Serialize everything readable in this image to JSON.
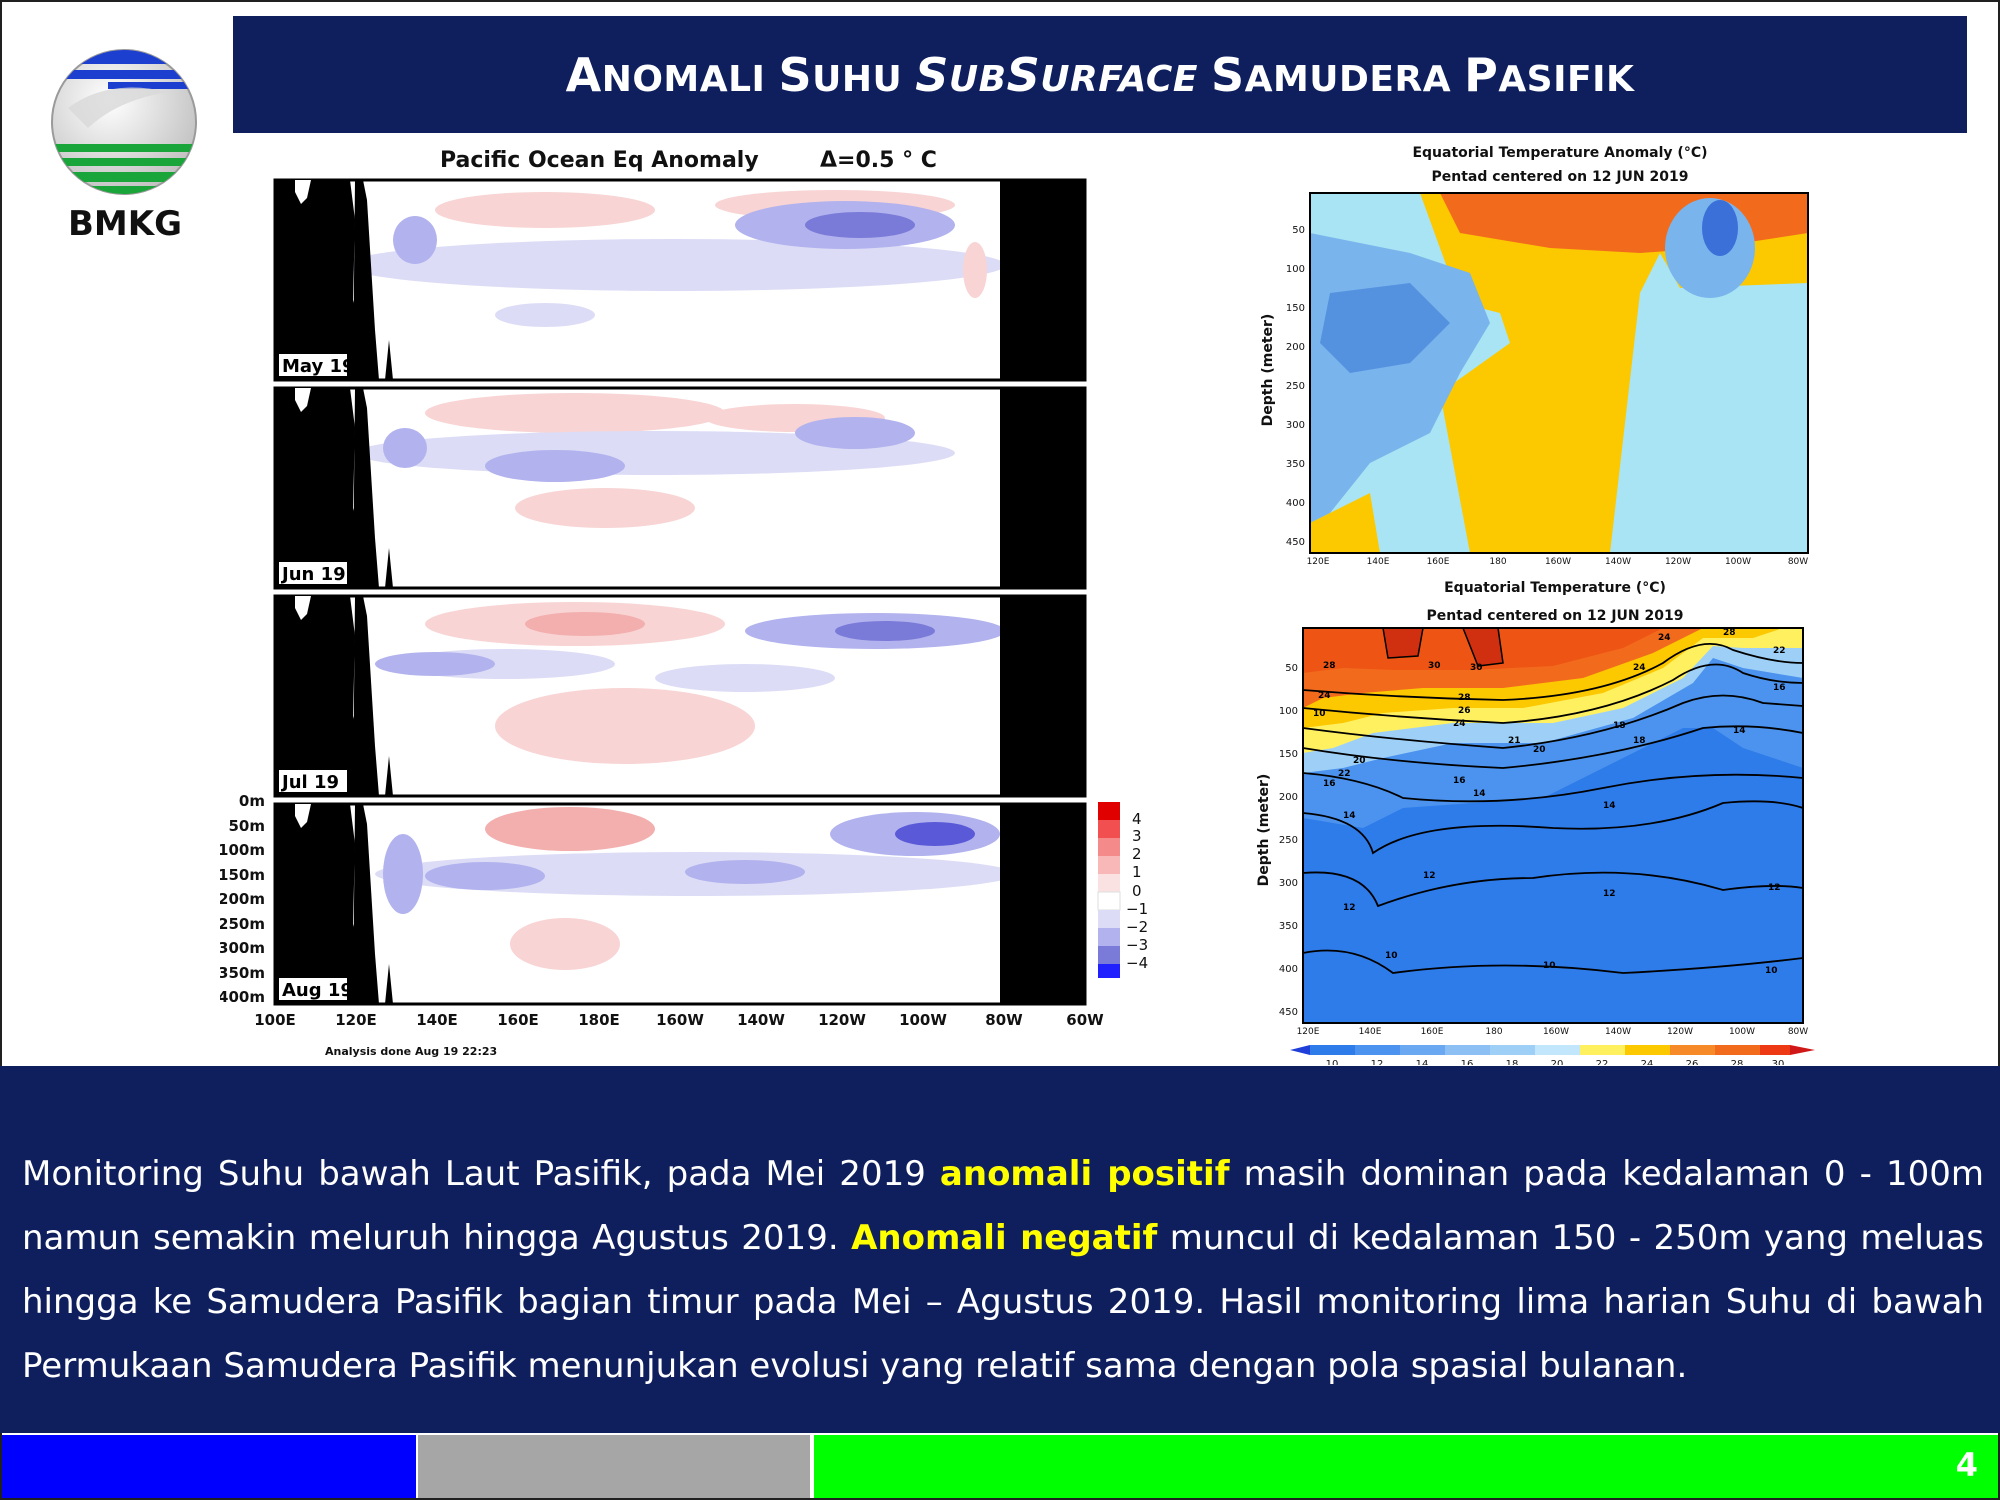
{
  "logo": {
    "text": "BMKG"
  },
  "title": {
    "part1_cap": "A",
    "part1_rest": "NOMALI ",
    "part2_cap": "S",
    "part2_rest": "UHU ",
    "part3_cap1": "S",
    "part3_rest1": "UB",
    "part3_cap2": "S",
    "part3_rest2": "URFACE ",
    "part4_cap": "S",
    "part4_rest": "AMUDERA ",
    "part5_cap": "P",
    "part5_rest": "ASIFIK"
  },
  "left_chart": {
    "title": "Pacific Ocean Eq Anomaly",
    "delta": "Δ=0.5 ° C",
    "panels": [
      "May 19",
      "Jun 19",
      "Jul 19",
      "Aug 19"
    ],
    "depth_labels": [
      "0m",
      "50m",
      "100m",
      "150m",
      "200m",
      "250m",
      "300m",
      "350m",
      "400m"
    ],
    "lon_labels": [
      "100E",
      "120E",
      "140E",
      "160E",
      "180E",
      "160W",
      "140W",
      "120W",
      "100W",
      "80W",
      "60W"
    ],
    "legend_labels": [
      "4",
      "3",
      "2",
      "1",
      "0",
      "−1",
      "−2",
      "−3",
      "−4"
    ],
    "footnote": "Analysis done Aug 19 22:23"
  },
  "right_top_chart": {
    "title": "Equatorial Temperature Anomaly (°C)",
    "subtitle": "Pentad centered on 12 JUN 2019",
    "ylabel": "Depth (meter)",
    "y_ticks": [
      "50",
      "100",
      "150",
      "200",
      "250",
      "300",
      "350",
      "400",
      "450"
    ],
    "x_ticks": [
      "120E",
      "140E",
      "160E",
      "180",
      "160W",
      "140W",
      "120W",
      "100W",
      "80W"
    ]
  },
  "right_bottom_chart": {
    "title": "Equatorial Temperature (°C)",
    "subtitle": "Pentad centered on 12 JUN 2019",
    "ylabel": "Depth (meter)",
    "y_ticks": [
      "50",
      "100",
      "150",
      "200",
      "250",
      "300",
      "350",
      "400",
      "450"
    ],
    "x_ticks": [
      "120E",
      "140E",
      "160E",
      "180",
      "160W",
      "140W",
      "120W",
      "100W",
      "80W"
    ],
    "colorbar_labels": [
      "10",
      "12",
      "14",
      "16",
      "18",
      "20",
      "22",
      "24",
      "26",
      "28",
      "30"
    ],
    "contour_labels": [
      "30",
      "30",
      "28",
      "26",
      "24",
      "22",
      "20",
      "18",
      "16",
      "14",
      "12",
      "10",
      "28",
      "24",
      "21",
      "20",
      "18",
      "16",
      "14",
      "14",
      "12",
      "12",
      "12",
      "10",
      "10",
      "10",
      "16",
      "14",
      "24",
      "24",
      "28",
      "22",
      "22"
    ]
  },
  "body": {
    "s1": "Monitoring Suhu bawah Laut Pasifik, pada Mei 2019 ",
    "h1": "anomali positif",
    "s2": " masih dominan pada kedalaman 0 - 100m namun semakin meluruh hingga Agustus 2019. ",
    "h2": "Anomali negatif",
    "s3": " muncul di kedalaman 150 - 250m yang meluas hingga ke Samudera Pasifik bagian timur pada Mei – Agustus 2019. Hasil monitoring lima harian Suhu di bawah Permukaan Samudera Pasifik menunjukan evolusi yang relatif sama dengan pola spasial bulanan."
  },
  "footer": {
    "page": "4"
  },
  "colors": {
    "navy": "#0f1f5e",
    "highlight": "#ffff00",
    "stripe_blue": "#0000ff",
    "stripe_gray": "#a6a6a6",
    "stripe_green": "#00ff00"
  }
}
